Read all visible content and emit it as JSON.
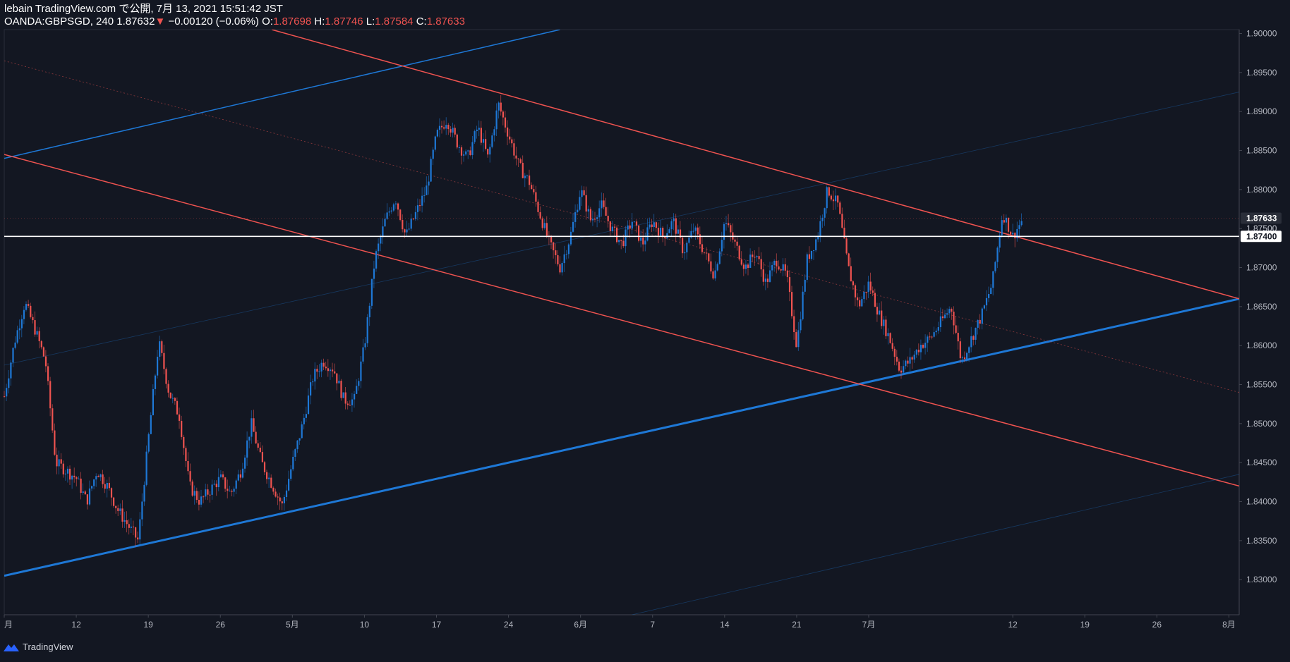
{
  "header": {
    "line1": "lebain TradingView.com で公開, 7月 13, 2021 15:51:42 JST",
    "symbol": "OANDA:GBPSGD, 240",
    "last": "1.87632",
    "arrow": "▼",
    "change": "−0.00120 (−0.06%)",
    "o_label": "O:",
    "o_value": "1.87698",
    "h_label": "H:",
    "h_value": "1.87746",
    "l_label": "L:",
    "l_value": "1.87584",
    "c_label": "C:",
    "c_value": "1.87633"
  },
  "footer": {
    "brand": "TradingView",
    "icon": "tradingview-logo-icon"
  },
  "colors": {
    "background": "#131722",
    "up": "#1e78d6",
    "down": "#ef5350",
    "axis_text": "#b2b5be",
    "white_line": "#ffffff"
  },
  "chart_data": {
    "type": "candlestick",
    "symbol": "OANDA:GBPSGD",
    "interval": "240",
    "x_ticks": [
      "月",
      "12",
      "19",
      "26",
      "5月",
      "10",
      "17",
      "24",
      "6月",
      "7",
      "14",
      "21",
      "7月",
      "12",
      "19",
      "26",
      "8月"
    ],
    "x_dates": [
      "2021-04-05",
      "2021-04-12",
      "2021-04-19",
      "2021-04-26",
      "2021-05-03",
      "2021-05-10",
      "2021-05-17",
      "2021-05-24",
      "2021-05-31",
      "2021-06-07",
      "2021-06-14",
      "2021-06-21",
      "2021-06-28",
      "2021-07-12",
      "2021-07-19",
      "2021-07-26",
      "2021-08-02"
    ],
    "y_ticks": [
      "1.90000",
      "1.89500",
      "1.89000",
      "1.88500",
      "1.88000",
      "1.87500",
      "1.87000",
      "1.86500",
      "1.86000",
      "1.85500",
      "1.85000",
      "1.84500",
      "1.84000",
      "1.83500",
      "1.83000"
    ],
    "ylim": [
      1.8255,
      1.9005
    ],
    "price_labels": [
      {
        "text": "1.87633",
        "value": 1.87633,
        "style": "current"
      },
      {
        "text": "1.87500",
        "value": 1.875,
        "style": "tick"
      },
      {
        "text": "1.87400",
        "value": 1.874,
        "style": "horizontal-line"
      }
    ],
    "horizontal_line": 1.874,
    "path_points": [
      [
        "2021-04-05",
        1.8535
      ],
      [
        "2021-04-06",
        1.8605
      ],
      [
        "2021-04-07",
        1.8655
      ],
      [
        "2021-04-08",
        1.862
      ],
      [
        "2021-04-09",
        1.858
      ],
      [
        "2021-04-10",
        1.845
      ],
      [
        "2021-04-12",
        1.843
      ],
      [
        "2021-04-13",
        1.84
      ],
      [
        "2021-04-14",
        1.844
      ],
      [
        "2021-04-15",
        1.842
      ],
      [
        "2021-04-16",
        1.839
      ],
      [
        "2021-04-18",
        1.835
      ],
      [
        "2021-04-19",
        1.848
      ],
      [
        "2021-04-20",
        1.8605
      ],
      [
        "2021-04-21",
        1.854
      ],
      [
        "2021-04-22",
        1.851
      ],
      [
        "2021-04-23",
        1.842
      ],
      [
        "2021-04-24",
        1.84
      ],
      [
        "2021-04-26",
        1.843
      ],
      [
        "2021-04-27",
        1.841
      ],
      [
        "2021-04-28",
        1.844
      ],
      [
        "2021-04-29",
        1.85
      ],
      [
        "2021-04-30",
        1.845
      ],
      [
        "2021-05-02",
        1.8395
      ],
      [
        "2021-05-03",
        1.845
      ],
      [
        "2021-05-04",
        1.85
      ],
      [
        "2021-05-05",
        1.856
      ],
      [
        "2021-05-06",
        1.858
      ],
      [
        "2021-05-07",
        1.857
      ],
      [
        "2021-05-08",
        1.853
      ],
      [
        "2021-05-09",
        1.853
      ],
      [
        "2021-05-10",
        1.86
      ],
      [
        "2021-05-11",
        1.871
      ],
      [
        "2021-05-12",
        1.876
      ],
      [
        "2021-05-13",
        1.879
      ],
      [
        "2021-05-14",
        1.874
      ],
      [
        "2021-05-15",
        1.877
      ],
      [
        "2021-05-16",
        1.88
      ],
      [
        "2021-05-17",
        1.887
      ],
      [
        "2021-05-18",
        1.889
      ],
      [
        "2021-05-19",
        1.886
      ],
      [
        "2021-05-20",
        1.884
      ],
      [
        "2021-05-21",
        1.888
      ],
      [
        "2021-05-22",
        1.884
      ],
      [
        "2021-05-23",
        1.891
      ],
      [
        "2021-05-24",
        1.887
      ],
      [
        "2021-05-25",
        1.883
      ],
      [
        "2021-05-26",
        1.881
      ],
      [
        "2021-05-27",
        1.877
      ],
      [
        "2021-05-28",
        1.873
      ],
      [
        "2021-05-29",
        1.87
      ],
      [
        "2021-05-30",
        1.874
      ],
      [
        "2021-05-31",
        1.88
      ],
      [
        "2021-06-01",
        1.876
      ],
      [
        "2021-06-02",
        1.878
      ],
      [
        "2021-06-03",
        1.875
      ],
      [
        "2021-06-04",
        1.873
      ],
      [
        "2021-06-05",
        1.876
      ],
      [
        "2021-06-06",
        1.873
      ],
      [
        "2021-06-07",
        1.876
      ],
      [
        "2021-06-08",
        1.874
      ],
      [
        "2021-06-09",
        1.876
      ],
      [
        "2021-06-10",
        1.872
      ],
      [
        "2021-06-11",
        1.875
      ],
      [
        "2021-06-12",
        1.872
      ],
      [
        "2021-06-13",
        1.869
      ],
      [
        "2021-06-14",
        1.876
      ],
      [
        "2021-06-15",
        1.873
      ],
      [
        "2021-06-16",
        1.87
      ],
      [
        "2021-06-17",
        1.872
      ],
      [
        "2021-06-18",
        1.868
      ],
      [
        "2021-06-19",
        1.871
      ],
      [
        "2021-06-20",
        1.869
      ],
      [
        "2021-06-21",
        1.86
      ],
      [
        "2021-06-22",
        1.871
      ],
      [
        "2021-06-23",
        1.874
      ],
      [
        "2021-06-24",
        1.88
      ],
      [
        "2021-06-25",
        1.878
      ],
      [
        "2021-06-26",
        1.87
      ],
      [
        "2021-06-27",
        1.865
      ],
      [
        "2021-06-28",
        1.868
      ],
      [
        "2021-06-29",
        1.864
      ],
      [
        "2021-06-30",
        1.861
      ],
      [
        "2021-07-01",
        1.857
      ],
      [
        "2021-07-02",
        1.858
      ],
      [
        "2021-07-03",
        1.86
      ],
      [
        "2021-07-04",
        1.861
      ],
      [
        "2021-07-05",
        1.863
      ],
      [
        "2021-07-06",
        1.865
      ],
      [
        "2021-07-07",
        1.858
      ],
      [
        "2021-07-08",
        1.861
      ],
      [
        "2021-07-09",
        1.864
      ],
      [
        "2021-07-10",
        1.868
      ],
      [
        "2021-07-11",
        1.877
      ],
      [
        "2021-07-12",
        1.874
      ],
      [
        "2021-07-13",
        1.8763
      ]
    ],
    "trend_lines": [
      {
        "name": "blue-upper",
        "color": "#1e78d6",
        "width": 1.5,
        "from": [
          "2021-04-05",
          1.884
        ],
        "to": [
          "2021-05-29",
          1.9005
        ]
      },
      {
        "name": "blue-lower",
        "color": "#1e78d6",
        "width": 3,
        "from": [
          "2021-04-05",
          1.8305
        ],
        "to": [
          "2021-08-03",
          1.866
        ]
      },
      {
        "name": "red-upper",
        "color": "#ef5350",
        "width": 1.5,
        "from": [
          "2021-05-01",
          1.9005
        ],
        "to": [
          "2021-08-03",
          1.866
        ]
      },
      {
        "name": "red-lower",
        "color": "#ef5350",
        "width": 1.5,
        "from": [
          "2021-04-05",
          1.8845
        ],
        "to": [
          "2021-08-03",
          1.842
        ]
      },
      {
        "name": "red-mid-dotted",
        "color": "#ef5350",
        "width": 0.8,
        "dash": "2,3",
        "opacity": 0.55,
        "from": [
          "2021-04-05",
          1.8965
        ],
        "to": [
          "2021-08-03",
          1.854
        ]
      },
      {
        "name": "blue-mid-faint",
        "color": "#1e78d6",
        "width": 0.8,
        "opacity": 0.35,
        "from": [
          "2021-04-05",
          1.8575
        ],
        "to": [
          "2021-08-03",
          1.8925
        ]
      },
      {
        "name": "blue-low-faint",
        "color": "#1e78d6",
        "width": 0.8,
        "opacity": 0.35,
        "from": [
          "2021-06-05",
          1.8255
        ],
        "to": [
          "2021-08-03",
          1.8435
        ]
      }
    ]
  }
}
